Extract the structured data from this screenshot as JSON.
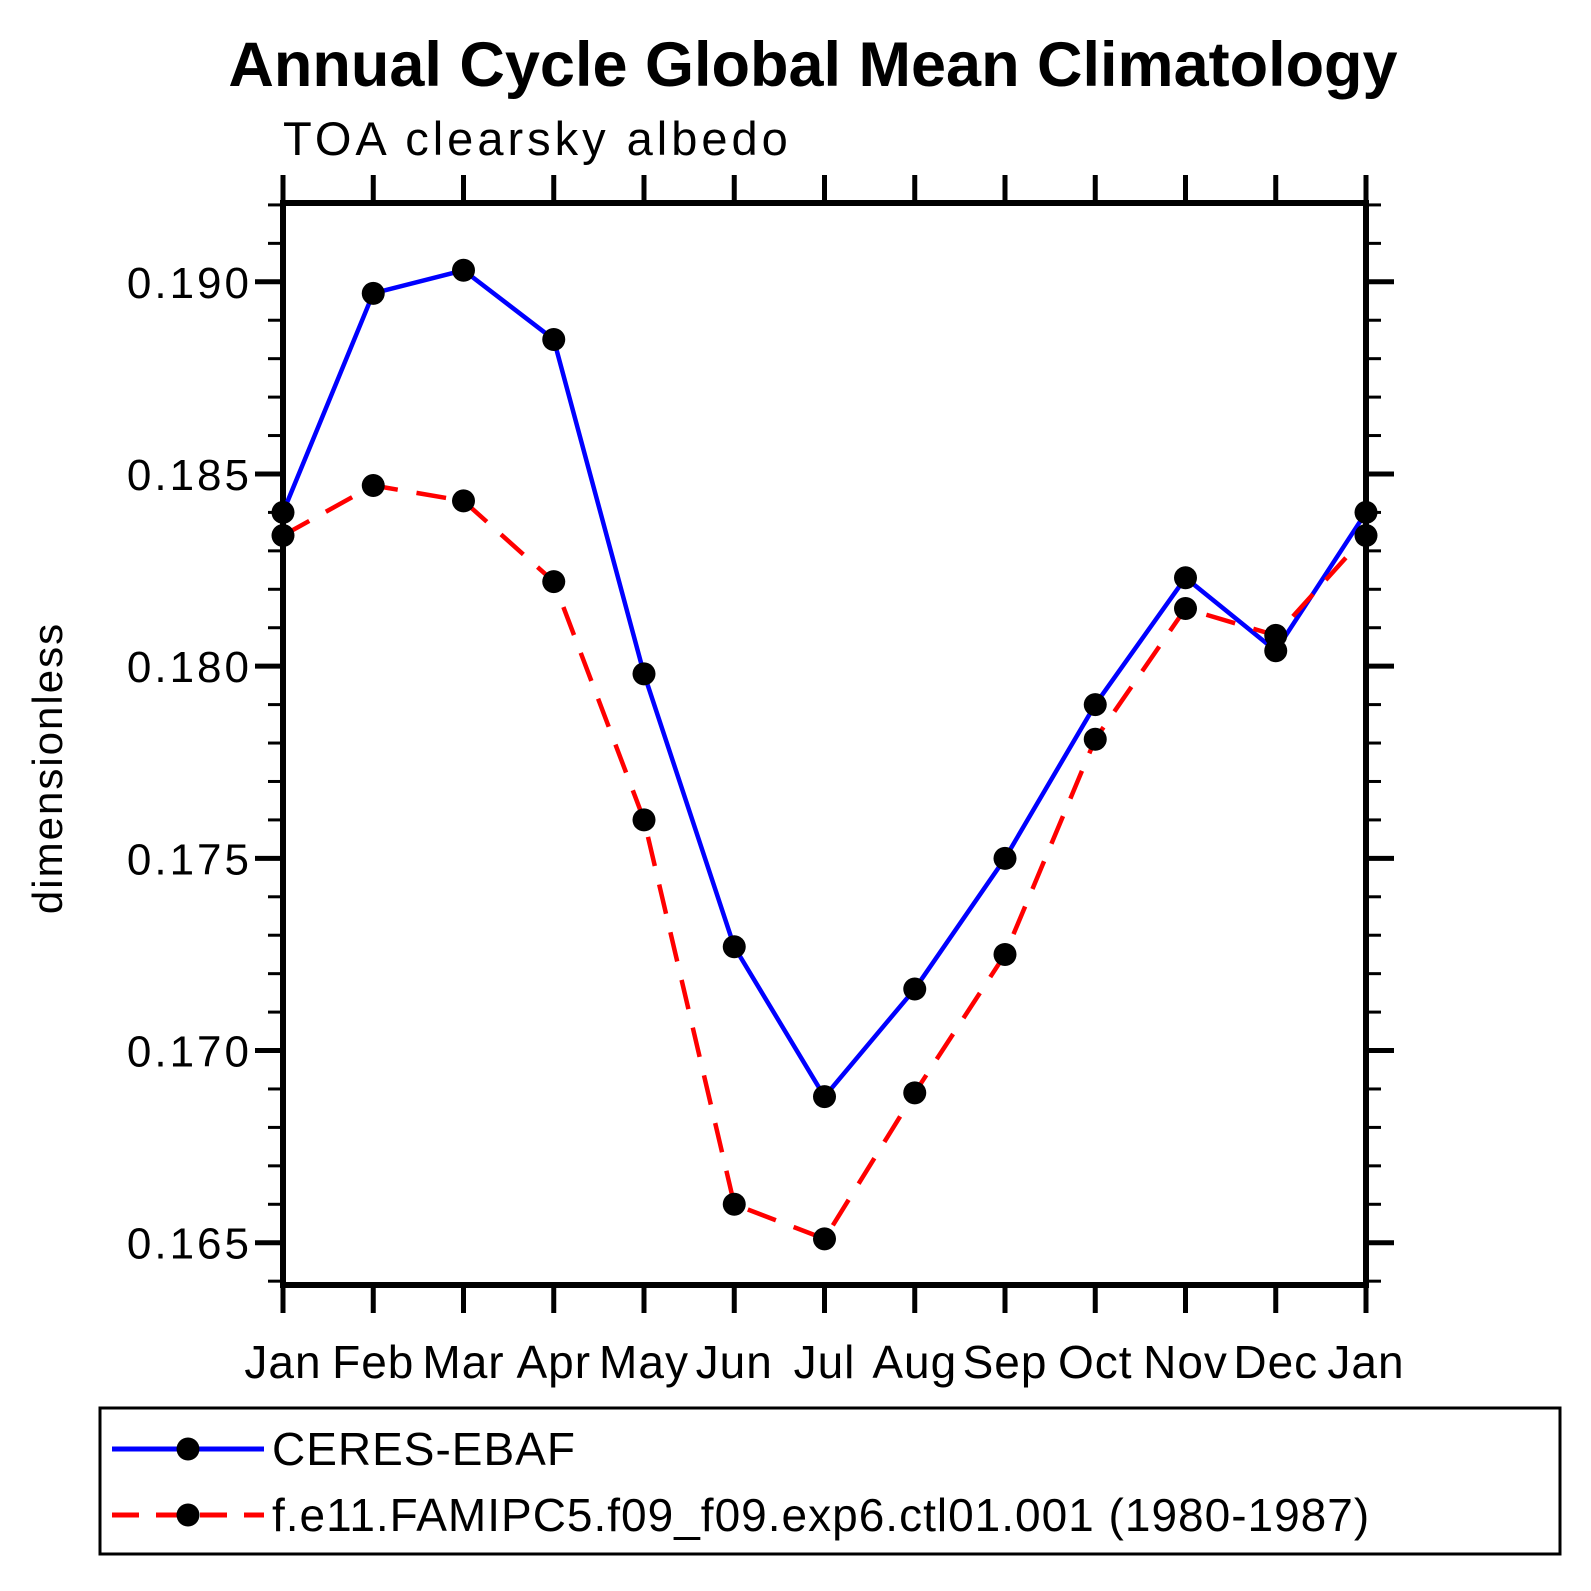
{
  "figure": {
    "title": "Annual Cycle Global Mean Climatology",
    "subtitle": "TOA clearsky albedo",
    "background_color": "#ffffff",
    "axis_color": "#000000"
  },
  "chart_data": {
    "type": "line",
    "title": "Annual Cycle Global Mean Climatology",
    "subtitle": "TOA clearsky albedo",
    "xlabel": "",
    "ylabel": "dimensionless",
    "categories": [
      "Jan",
      "Feb",
      "Mar",
      "Apr",
      "May",
      "Jun",
      "Jul",
      "Aug",
      "Sep",
      "Oct",
      "Nov",
      "Dec",
      "Jan"
    ],
    "ylim": [
      0.1639,
      0.19205
    ],
    "yticks_major": [
      0.165,
      0.17,
      0.175,
      0.18,
      0.185,
      0.19
    ],
    "ytick_labels": [
      "0.165",
      "0.170",
      "0.175",
      "0.180",
      "0.185",
      "0.190"
    ],
    "ytick_minor_step": 0.001,
    "grid": false,
    "legend_position": "bottom",
    "series": [
      {
        "name": "CERES-EBAF",
        "color": "#0000ff",
        "line_style": "solid",
        "marker": "circle",
        "marker_color": "#000000",
        "values": [
          0.184,
          0.1897,
          0.1903,
          0.1885,
          0.1798,
          0.1727,
          0.1688,
          0.1716,
          0.175,
          0.179,
          0.1823,
          0.1804,
          0.184
        ]
      },
      {
        "name": "f.e11.FAMIPC5.f09_f09.exp6.ctl01.001 (1980-1987)",
        "color": "#ff0000",
        "line_style": "dashed",
        "marker": "circle",
        "marker_color": "#000000",
        "values": [
          0.1834,
          0.1847,
          0.1843,
          0.1822,
          0.176,
          0.166,
          0.1651,
          0.1689,
          0.1725,
          0.1781,
          0.1815,
          0.1808,
          0.1834
        ]
      }
    ]
  }
}
